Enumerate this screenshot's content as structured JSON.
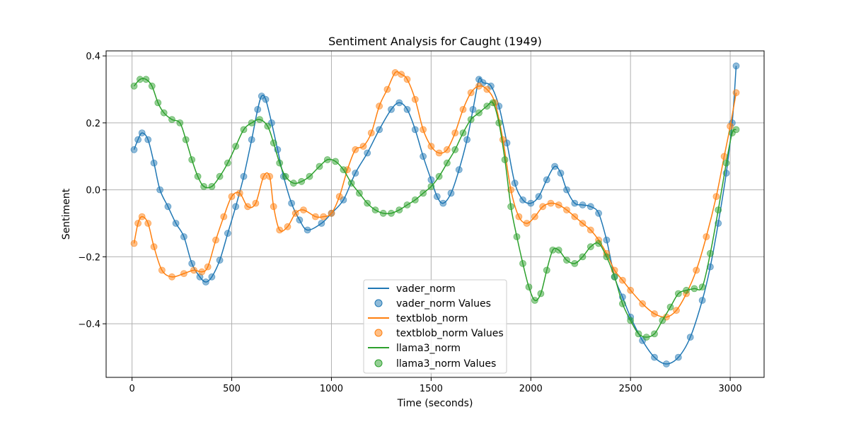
{
  "chart_data": {
    "type": "line",
    "title": "Sentiment Analysis for Caught (1949)",
    "xlabel": "Time (seconds)",
    "ylabel": "Sentiment",
    "xlim": [
      -130,
      3170
    ],
    "ylim": [
      -0.56,
      0.415
    ],
    "xticks": [
      0,
      500,
      1000,
      1500,
      2000,
      2500,
      3000
    ],
    "yticks": [
      -0.4,
      -0.2,
      0.0,
      0.2,
      0.4
    ],
    "ytick_labels": [
      "−0.4",
      "−0.2",
      "0.0",
      "0.2",
      "0.4"
    ],
    "grid": true,
    "legend_position": "lower-center",
    "series": [
      {
        "name": "vader_norm",
        "marker_name": "vader_norm Values",
        "color": "#1f77b4",
        "points": [
          [
            10,
            0.12
          ],
          [
            30,
            0.15
          ],
          [
            50,
            0.17
          ],
          [
            80,
            0.15
          ],
          [
            110,
            0.08
          ],
          [
            140,
            0.0
          ],
          [
            180,
            -0.05
          ],
          [
            220,
            -0.1
          ],
          [
            260,
            -0.14
          ],
          [
            300,
            -0.22
          ],
          [
            340,
            -0.26
          ],
          [
            370,
            -0.275
          ],
          [
            400,
            -0.26
          ],
          [
            440,
            -0.21
          ],
          [
            480,
            -0.13
          ],
          [
            520,
            -0.05
          ],
          [
            560,
            0.04
          ],
          [
            600,
            0.15
          ],
          [
            630,
            0.24
          ],
          [
            650,
            0.28
          ],
          [
            670,
            0.27
          ],
          [
            700,
            0.2
          ],
          [
            730,
            0.12
          ],
          [
            760,
            0.04
          ],
          [
            800,
            -0.04
          ],
          [
            840,
            -0.09
          ],
          [
            880,
            -0.12
          ],
          [
            950,
            -0.1
          ],
          [
            1000,
            -0.07
          ],
          [
            1060,
            -0.03
          ],
          [
            1120,
            0.05
          ],
          [
            1180,
            0.11
          ],
          [
            1240,
            0.18
          ],
          [
            1300,
            0.24
          ],
          [
            1340,
            0.26
          ],
          [
            1380,
            0.24
          ],
          [
            1420,
            0.18
          ],
          [
            1460,
            0.1
          ],
          [
            1500,
            0.03
          ],
          [
            1530,
            -0.02
          ],
          [
            1560,
            -0.04
          ],
          [
            1600,
            -0.01
          ],
          [
            1640,
            0.06
          ],
          [
            1680,
            0.15
          ],
          [
            1710,
            0.24
          ],
          [
            1740,
            0.33
          ],
          [
            1760,
            0.32
          ],
          [
            1800,
            0.31
          ],
          [
            1840,
            0.25
          ],
          [
            1880,
            0.14
          ],
          [
            1920,
            0.02
          ],
          [
            1960,
            -0.03
          ],
          [
            2000,
            -0.04
          ],
          [
            2040,
            -0.02
          ],
          [
            2080,
            0.03
          ],
          [
            2120,
            0.07
          ],
          [
            2150,
            0.05
          ],
          [
            2180,
            0.0
          ],
          [
            2220,
            -0.04
          ],
          [
            2260,
            -0.045
          ],
          [
            2300,
            -0.05
          ],
          [
            2340,
            -0.07
          ],
          [
            2380,
            -0.15
          ],
          [
            2420,
            -0.26
          ],
          [
            2460,
            -0.32
          ],
          [
            2500,
            -0.38
          ],
          [
            2560,
            -0.45
          ],
          [
            2620,
            -0.5
          ],
          [
            2680,
            -0.52
          ],
          [
            2740,
            -0.5
          ],
          [
            2800,
            -0.44
          ],
          [
            2860,
            -0.33
          ],
          [
            2900,
            -0.23
          ],
          [
            2940,
            -0.1
          ],
          [
            2980,
            0.05
          ],
          [
            3010,
            0.2
          ],
          [
            3030,
            0.37
          ]
        ]
      },
      {
        "name": "textblob_norm",
        "marker_name": "textblob_norm Values",
        "color": "#ff7f0e",
        "points": [
          [
            10,
            -0.16
          ],
          [
            30,
            -0.1
          ],
          [
            50,
            -0.08
          ],
          [
            80,
            -0.1
          ],
          [
            110,
            -0.17
          ],
          [
            150,
            -0.24
          ],
          [
            200,
            -0.26
          ],
          [
            260,
            -0.25
          ],
          [
            310,
            -0.24
          ],
          [
            350,
            -0.245
          ],
          [
            380,
            -0.23
          ],
          [
            420,
            -0.15
          ],
          [
            460,
            -0.08
          ],
          [
            500,
            -0.02
          ],
          [
            540,
            -0.01
          ],
          [
            580,
            -0.05
          ],
          [
            620,
            -0.04
          ],
          [
            660,
            0.04
          ],
          [
            690,
            0.04
          ],
          [
            710,
            -0.05
          ],
          [
            740,
            -0.12
          ],
          [
            780,
            -0.11
          ],
          [
            820,
            -0.07
          ],
          [
            860,
            -0.06
          ],
          [
            920,
            -0.08
          ],
          [
            960,
            -0.08
          ],
          [
            1000,
            -0.07
          ],
          [
            1040,
            -0.02
          ],
          [
            1080,
            0.06
          ],
          [
            1120,
            0.12
          ],
          [
            1160,
            0.13
          ],
          [
            1200,
            0.17
          ],
          [
            1240,
            0.25
          ],
          [
            1280,
            0.3
          ],
          [
            1320,
            0.35
          ],
          [
            1350,
            0.345
          ],
          [
            1380,
            0.33
          ],
          [
            1420,
            0.27
          ],
          [
            1460,
            0.18
          ],
          [
            1500,
            0.13
          ],
          [
            1540,
            0.11
          ],
          [
            1580,
            0.12
          ],
          [
            1620,
            0.17
          ],
          [
            1660,
            0.24
          ],
          [
            1700,
            0.29
          ],
          [
            1740,
            0.31
          ],
          [
            1780,
            0.3
          ],
          [
            1820,
            0.26
          ],
          [
            1860,
            0.15
          ],
          [
            1900,
            0.0
          ],
          [
            1940,
            -0.08
          ],
          [
            1980,
            -0.1
          ],
          [
            2020,
            -0.08
          ],
          [
            2060,
            -0.05
          ],
          [
            2100,
            -0.04
          ],
          [
            2140,
            -0.045
          ],
          [
            2180,
            -0.06
          ],
          [
            2220,
            -0.08
          ],
          [
            2260,
            -0.1
          ],
          [
            2300,
            -0.12
          ],
          [
            2340,
            -0.15
          ],
          [
            2380,
            -0.19
          ],
          [
            2420,
            -0.24
          ],
          [
            2460,
            -0.27
          ],
          [
            2500,
            -0.3
          ],
          [
            2560,
            -0.34
          ],
          [
            2620,
            -0.37
          ],
          [
            2680,
            -0.38
          ],
          [
            2730,
            -0.36
          ],
          [
            2780,
            -0.31
          ],
          [
            2830,
            -0.24
          ],
          [
            2880,
            -0.14
          ],
          [
            2930,
            -0.02
          ],
          [
            2970,
            0.1
          ],
          [
            3000,
            0.19
          ],
          [
            3030,
            0.29
          ]
        ]
      },
      {
        "name": "llama3_norm",
        "marker_name": "llama3_norm Values",
        "color": "#2ca02c",
        "points": [
          [
            10,
            0.31
          ],
          [
            40,
            0.33
          ],
          [
            70,
            0.33
          ],
          [
            100,
            0.31
          ],
          [
            130,
            0.26
          ],
          [
            160,
            0.23
          ],
          [
            200,
            0.21
          ],
          [
            240,
            0.2
          ],
          [
            270,
            0.15
          ],
          [
            300,
            0.09
          ],
          [
            330,
            0.04
          ],
          [
            360,
            0.01
          ],
          [
            400,
            0.01
          ],
          [
            440,
            0.04
          ],
          [
            480,
            0.08
          ],
          [
            520,
            0.13
          ],
          [
            560,
            0.18
          ],
          [
            600,
            0.2
          ],
          [
            640,
            0.21
          ],
          [
            680,
            0.19
          ],
          [
            710,
            0.14
          ],
          [
            740,
            0.08
          ],
          [
            770,
            0.04
          ],
          [
            810,
            0.02
          ],
          [
            850,
            0.025
          ],
          [
            890,
            0.04
          ],
          [
            940,
            0.07
          ],
          [
            980,
            0.09
          ],
          [
            1020,
            0.085
          ],
          [
            1060,
            0.06
          ],
          [
            1100,
            0.02
          ],
          [
            1140,
            -0.01
          ],
          [
            1180,
            -0.04
          ],
          [
            1220,
            -0.06
          ],
          [
            1260,
            -0.07
          ],
          [
            1300,
            -0.07
          ],
          [
            1340,
            -0.06
          ],
          [
            1380,
            -0.045
          ],
          [
            1420,
            -0.03
          ],
          [
            1460,
            -0.01
          ],
          [
            1500,
            0.01
          ],
          [
            1540,
            0.04
          ],
          [
            1580,
            0.08
          ],
          [
            1620,
            0.12
          ],
          [
            1660,
            0.17
          ],
          [
            1700,
            0.21
          ],
          [
            1740,
            0.23
          ],
          [
            1780,
            0.25
          ],
          [
            1810,
            0.26
          ],
          [
            1840,
            0.2
          ],
          [
            1870,
            0.09
          ],
          [
            1900,
            -0.05
          ],
          [
            1930,
            -0.14
          ],
          [
            1960,
            -0.22
          ],
          [
            1990,
            -0.29
          ],
          [
            2020,
            -0.33
          ],
          [
            2050,
            -0.31
          ],
          [
            2080,
            -0.24
          ],
          [
            2110,
            -0.18
          ],
          [
            2140,
            -0.18
          ],
          [
            2180,
            -0.21
          ],
          [
            2220,
            -0.22
          ],
          [
            2260,
            -0.2
          ],
          [
            2300,
            -0.17
          ],
          [
            2340,
            -0.16
          ],
          [
            2380,
            -0.2
          ],
          [
            2420,
            -0.26
          ],
          [
            2460,
            -0.34
          ],
          [
            2500,
            -0.39
          ],
          [
            2540,
            -0.43
          ],
          [
            2580,
            -0.44
          ],
          [
            2620,
            -0.43
          ],
          [
            2660,
            -0.39
          ],
          [
            2700,
            -0.35
          ],
          [
            2740,
            -0.31
          ],
          [
            2780,
            -0.3
          ],
          [
            2820,
            -0.295
          ],
          [
            2860,
            -0.29
          ],
          [
            2900,
            -0.19
          ],
          [
            2940,
            -0.06
          ],
          [
            2980,
            0.08
          ],
          [
            3010,
            0.17
          ],
          [
            3030,
            0.18
          ]
        ]
      }
    ]
  }
}
